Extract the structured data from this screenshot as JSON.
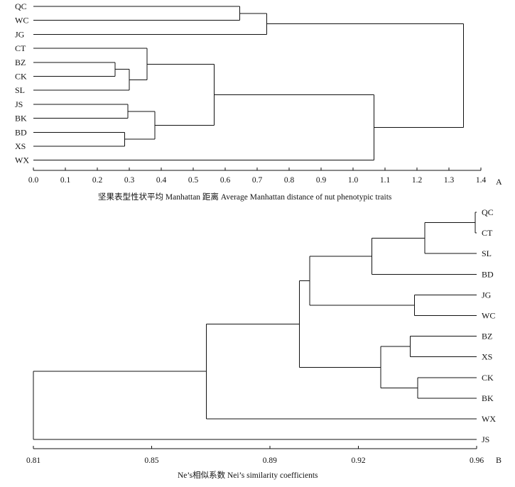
{
  "chart_data": [
    {
      "panel": "A",
      "type": "dendrogram",
      "orientation": "root-right",
      "xlabel": "坚果表型性状平均 Manhattan 距离  Average Manhattan distance of nut phenotypic traits",
      "xlim": [
        0.0,
        1.4
      ],
      "ticks": [
        "0.0",
        "0.1",
        "0.2",
        "0.3",
        "0.4",
        "0.5",
        "0.6",
        "0.7",
        "0.8",
        "0.9",
        "1.0",
        "1.1",
        "1.2",
        "1.3",
        "1.4"
      ],
      "leaves": [
        "QC",
        "WC",
        "JG",
        "CT",
        "BZ",
        "CK",
        "SL",
        "JS",
        "BK",
        "BD",
        "XS",
        "WX"
      ],
      "merges": [
        {
          "a": "BZ",
          "b": "CK",
          "h": 0.255,
          "id": "n1"
        },
        {
          "a": "BD",
          "b": "XS",
          "h": 0.285,
          "id": "n2"
        },
        {
          "a": "JS",
          "b": "BK",
          "h": 0.295,
          "id": "n3"
        },
        {
          "a": "n1",
          "b": "SL",
          "h": 0.3,
          "id": "n4"
        },
        {
          "a": "CT",
          "b": "n4",
          "h": 0.355,
          "id": "n5"
        },
        {
          "a": "n3",
          "b": "n2",
          "h": 0.38,
          "id": "n6"
        },
        {
          "a": "n5",
          "b": "n6",
          "h": 0.565,
          "id": "n7"
        },
        {
          "a": "QC",
          "b": "WC",
          "h": 0.645,
          "id": "n8"
        },
        {
          "a": "n8",
          "b": "JG",
          "h": 0.73,
          "id": "n9"
        },
        {
          "a": "n7",
          "b": "WX",
          "h": 1.065,
          "id": "n10"
        },
        {
          "a": "n9",
          "b": "n10",
          "h": 1.345,
          "id": "n11"
        }
      ]
    },
    {
      "panel": "B",
      "type": "dendrogram",
      "orientation": "root-left",
      "xlabel": "Ne’s相似系数  Nei’s similarity coefficients",
      "xlim": [
        0.81,
        0.96
      ],
      "ticks": [
        "0.81",
        "0.85",
        "0.89",
        "0.92",
        "0.96"
      ],
      "tick_values": [
        0.81,
        0.85,
        0.89,
        0.92,
        0.96
      ],
      "leaves": [
        "QC",
        "CT",
        "SL",
        "BD",
        "JG",
        "WC",
        "BZ",
        "XS",
        "CK",
        "BK",
        "WX",
        "JS"
      ],
      "merges": [
        {
          "a": "QC",
          "b": "CT",
          "h": 0.9595,
          "id": "m1"
        },
        {
          "a": "JG",
          "b": "WC",
          "h": 0.939,
          "id": "m2"
        },
        {
          "a": "BZ",
          "b": "XS",
          "h": 0.9375,
          "id": "m3"
        },
        {
          "a": "CK",
          "b": "BK",
          "h": 0.94,
          "id": "m4"
        },
        {
          "a": "m1",
          "b": "SL",
          "h": 0.9425,
          "id": "m5"
        },
        {
          "a": "m5",
          "b": "BD",
          "h": 0.9245,
          "id": "m6"
        },
        {
          "a": "m6",
          "b": "m2",
          "h": 0.9035,
          "id": "m7"
        },
        {
          "a": "m3",
          "b": "m4",
          "h": 0.9275,
          "id": "m8"
        },
        {
          "a": "m7",
          "b": "m8",
          "h": 0.9,
          "id": "m9"
        },
        {
          "a": "m9",
          "b": "WX",
          "h": 0.8685,
          "id": "m10"
        },
        {
          "a": "m10",
          "b": "JS",
          "h": 0.81,
          "id": "m11"
        }
      ]
    }
  ]
}
